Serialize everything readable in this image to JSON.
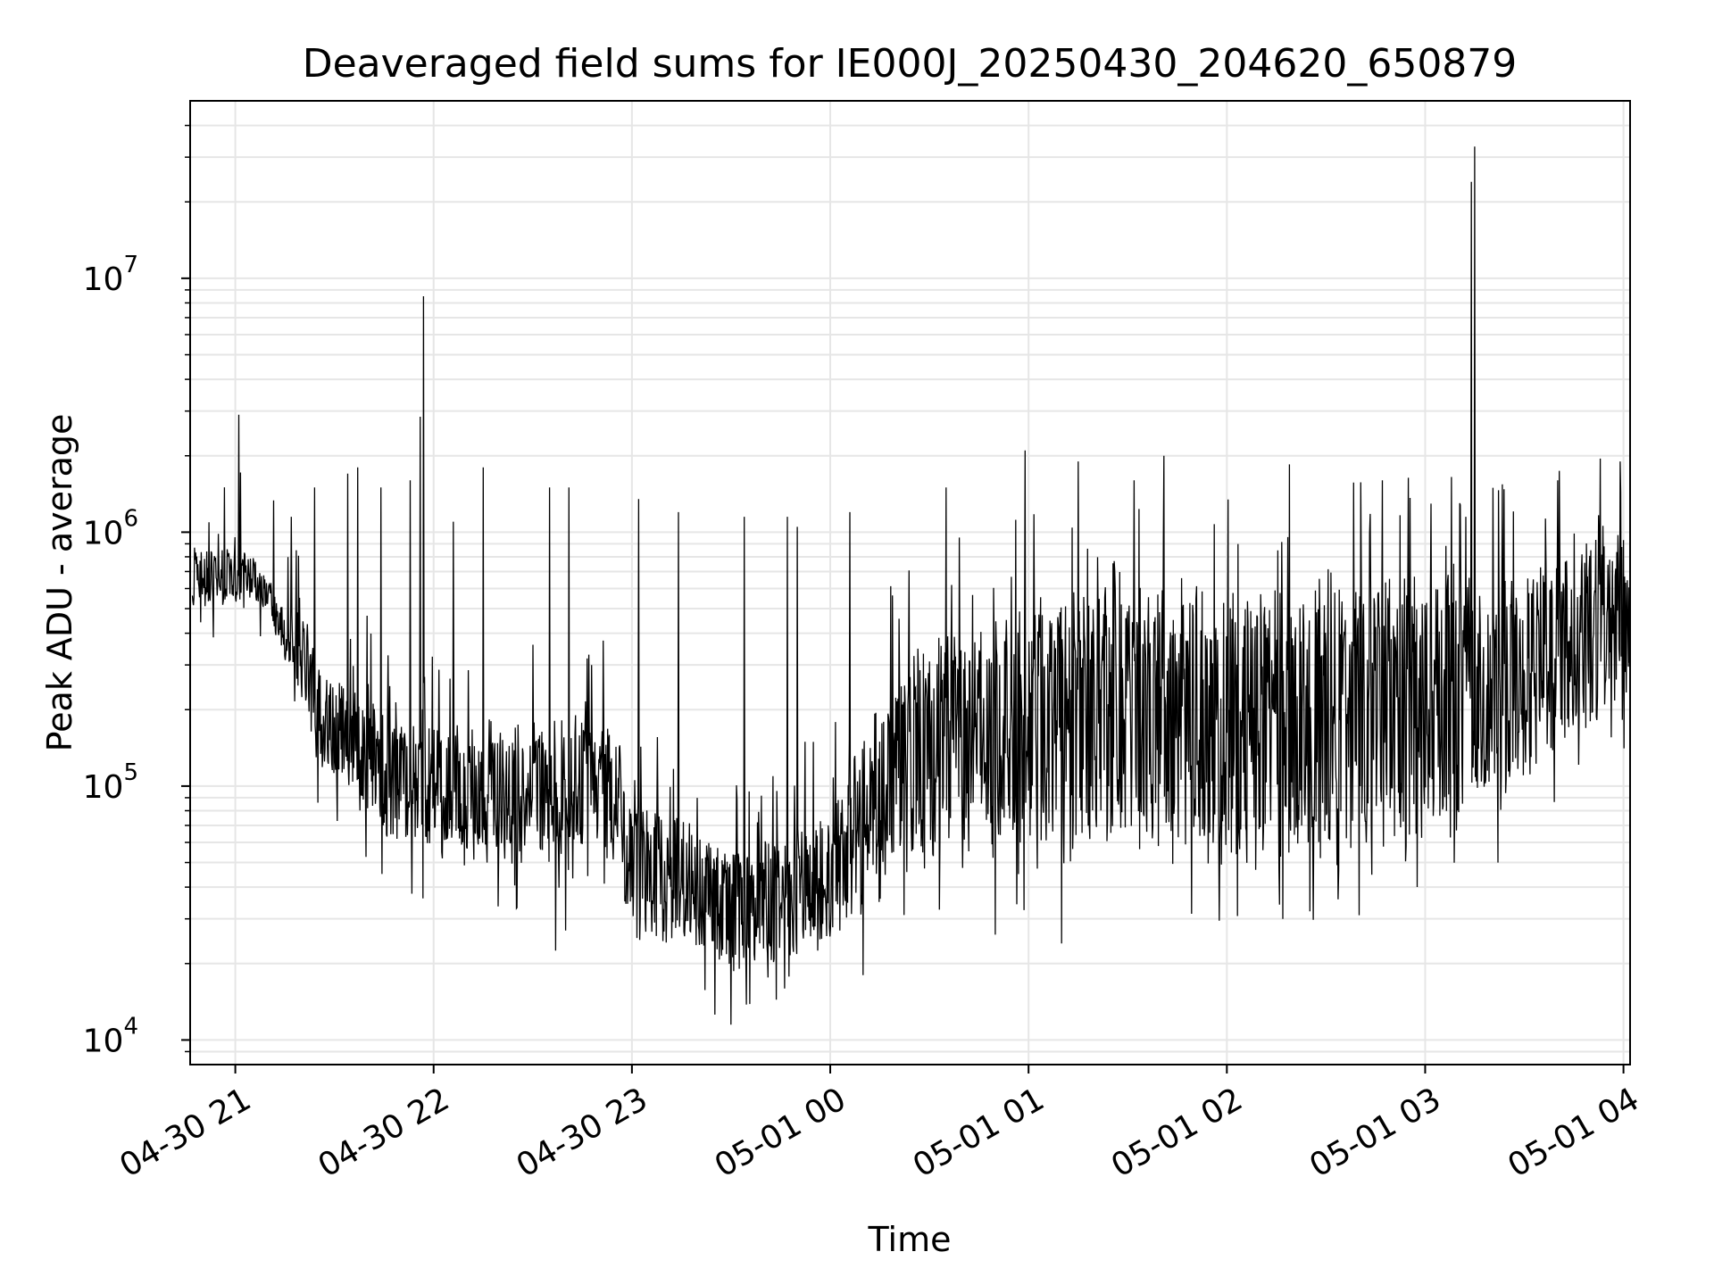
{
  "chart_data": {
    "type": "line",
    "title": "Deaveraged field sums for IE000J_20250430_204620_650879",
    "xlabel": "Time",
    "ylabel": "Peak ADU - average",
    "yscale": "log",
    "xlim": [
      "2025-04-30T20:46:20",
      "2025-05-01T04:02:00"
    ],
    "ylim": [
      8000,
      50000000
    ],
    "grid": true,
    "legend": "none",
    "x_ticks": [
      {
        "time": "2025-04-30T21:00:00",
        "label": "04-30 21"
      },
      {
        "time": "2025-04-30T22:00:00",
        "label": "04-30 22"
      },
      {
        "time": "2025-04-30T23:00:00",
        "label": "04-30 23"
      },
      {
        "time": "2025-05-01T00:00:00",
        "label": "05-01 00"
      },
      {
        "time": "2025-05-01T01:00:00",
        "label": "05-01 01"
      },
      {
        "time": "2025-05-01T02:00:00",
        "label": "05-01 02"
      },
      {
        "time": "2025-05-01T03:00:00",
        "label": "05-01 03"
      },
      {
        "time": "2025-05-01T04:00:00",
        "label": "05-01 04"
      }
    ],
    "y_ticks": [
      {
        "value": 10000,
        "base": "10",
        "exp": "4"
      },
      {
        "value": 100000,
        "base": "10",
        "exp": "5"
      },
      {
        "value": 1000000,
        "base": "10",
        "exp": "6"
      },
      {
        "value": 10000000,
        "base": "10",
        "exp": "7"
      }
    ],
    "series": [
      {
        "color": "#000000",
        "envelope": [
          {
            "time": "2025-04-30T20:47:00",
            "low": 500000,
            "high": 900000
          },
          {
            "time": "2025-04-30T21:00:00",
            "low": 520000,
            "high": 880000
          },
          {
            "time": "2025-04-30T21:05:00",
            "low": 550000,
            "high": 850000
          },
          {
            "time": "2025-04-30T21:10:00",
            "low": 480000,
            "high": 650000
          },
          {
            "time": "2025-04-30T21:15:00",
            "low": 300000,
            "high": 550000
          },
          {
            "time": "2025-04-30T21:20:00",
            "low": 220000,
            "high": 520000
          },
          {
            "time": "2025-04-30T21:25:00",
            "low": 120000,
            "high": 350000
          },
          {
            "time": "2025-04-30T21:30:00",
            "low": 95000,
            "high": 280000
          },
          {
            "time": "2025-04-30T21:40:00",
            "low": 70000,
            "high": 220000
          },
          {
            "time": "2025-04-30T21:50:00",
            "low": 55000,
            "high": 180000
          },
          {
            "time": "2025-04-30T22:00:00",
            "low": 55000,
            "high": 180000
          },
          {
            "time": "2025-04-30T22:15:00",
            "low": 50000,
            "high": 170000
          },
          {
            "time": "2025-04-30T22:30:00",
            "low": 45000,
            "high": 180000
          },
          {
            "time": "2025-04-30T22:45:00",
            "low": 55000,
            "high": 200000
          },
          {
            "time": "2025-04-30T22:55:00",
            "low": 50000,
            "high": 190000
          },
          {
            "time": "2025-04-30T23:00:00",
            "low": 24000,
            "high": 90000
          },
          {
            "time": "2025-04-30T23:15:00",
            "low": 23000,
            "high": 75000
          },
          {
            "time": "2025-04-30T23:30:00",
            "low": 18000,
            "high": 60000
          },
          {
            "time": "2025-04-30T23:45:00",
            "low": 20000,
            "high": 65000
          },
          {
            "time": "2025-05-01T00:00:00",
            "low": 22000,
            "high": 80000
          },
          {
            "time": "2025-05-01T00:15:00",
            "low": 40000,
            "high": 250000
          },
          {
            "time": "2025-05-01T00:30:00",
            "low": 50000,
            "high": 400000
          },
          {
            "time": "2025-05-01T01:00:00",
            "low": 50000,
            "high": 550000
          },
          {
            "time": "2025-05-01T01:30:00",
            "low": 50000,
            "high": 650000
          },
          {
            "time": "2025-05-01T02:00:00",
            "low": 45000,
            "high": 650000
          },
          {
            "time": "2025-05-01T02:30:00",
            "low": 45000,
            "high": 700000
          },
          {
            "time": "2025-05-01T03:00:00",
            "low": 60000,
            "high": 750000
          },
          {
            "time": "2025-05-01T03:30:00",
            "low": 100000,
            "high": 700000
          },
          {
            "time": "2025-05-01T04:00:00",
            "low": 200000,
            "high": 1100000
          },
          {
            "time": "2025-05-01T04:02:00",
            "low": 270000,
            "high": 700000
          }
        ],
        "spikes": [
          {
            "time": "2025-04-30T21:01:00",
            "value": 2900000
          },
          {
            "time": "2025-04-30T21:17:00",
            "value": 1150000
          },
          {
            "time": "2025-04-30T21:24:00",
            "value": 1500000
          },
          {
            "time": "2025-04-30T21:34:00",
            "value": 1700000
          },
          {
            "time": "2025-04-30T21:37:00",
            "value": 1800000
          },
          {
            "time": "2025-04-30T21:44:00",
            "value": 1500000
          },
          {
            "time": "2025-04-30T21:53:00",
            "value": 1600000
          },
          {
            "time": "2025-04-30T21:56:00",
            "value": 2850000
          },
          {
            "time": "2025-04-30T21:57:00",
            "value": 8500000
          },
          {
            "time": "2025-04-30T22:06:00",
            "value": 1100000
          },
          {
            "time": "2025-04-30T22:15:00",
            "value": 1800000
          },
          {
            "time": "2025-04-30T22:35:00",
            "value": 1500000
          },
          {
            "time": "2025-04-30T22:41:00",
            "value": 1500000
          },
          {
            "time": "2025-04-30T23:02:00",
            "value": 1350000
          },
          {
            "time": "2025-04-30T23:14:00",
            "value": 1200000
          },
          {
            "time": "2025-04-30T23:34:00",
            "value": 1150000
          },
          {
            "time": "2025-04-30T23:47:00",
            "value": 1150000
          },
          {
            "time": "2025-04-30T23:50:00",
            "value": 1050000
          },
          {
            "time": "2025-05-01T00:06:00",
            "value": 1200000
          },
          {
            "time": "2025-05-01T00:35:00",
            "value": 1500000
          },
          {
            "time": "2025-05-01T00:59:00",
            "value": 2100000
          },
          {
            "time": "2025-05-01T01:15:00",
            "value": 1900000
          },
          {
            "time": "2025-05-01T01:32:00",
            "value": 1600000
          },
          {
            "time": "2025-05-01T01:41:00",
            "value": 2000000
          },
          {
            "time": "2025-05-01T02:19:00",
            "value": 1850000
          },
          {
            "time": "2025-05-01T02:47:00",
            "value": 1600000
          },
          {
            "time": "2025-05-01T03:08:00",
            "value": 1650000
          },
          {
            "time": "2025-05-01T03:14:00",
            "value": 24000000
          },
          {
            "time": "2025-05-01T03:15:00",
            "value": 33000000
          },
          {
            "time": "2025-05-01T03:40:00",
            "value": 1600000
          },
          {
            "time": "2025-05-01T03:53:00",
            "value": 1950000
          },
          {
            "time": "2025-05-01T03:59:00",
            "value": 1900000
          }
        ],
        "dips": [
          {
            "time": "2025-04-30T21:17:00",
            "value": 130000
          },
          {
            "time": "2025-04-30T21:25:00",
            "value": 86000
          },
          {
            "time": "2025-04-30T22:25:00",
            "value": 33000
          },
          {
            "time": "2025-04-30T22:37:00",
            "value": 22500
          },
          {
            "time": "2025-04-30T22:40:00",
            "value": 27000
          },
          {
            "time": "2025-04-30T23:30:00",
            "value": 11500
          },
          {
            "time": "2025-05-01T00:10:00",
            "value": 18000
          },
          {
            "time": "2025-05-01T00:50:00",
            "value": 26000
          },
          {
            "time": "2025-05-01T01:10:00",
            "value": 24000
          },
          {
            "time": "2025-05-01T02:17:00",
            "value": 30000
          },
          {
            "time": "2025-05-01T02:40:00",
            "value": 31000
          },
          {
            "time": "2025-05-01T03:22:00",
            "value": 50000
          }
        ]
      }
    ]
  }
}
